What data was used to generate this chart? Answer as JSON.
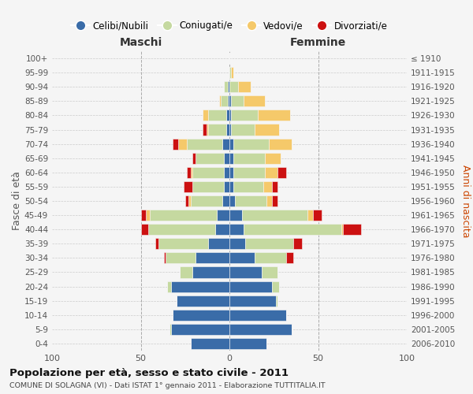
{
  "age_groups": [
    "0-4",
    "5-9",
    "10-14",
    "15-19",
    "20-24",
    "25-29",
    "30-34",
    "35-39",
    "40-44",
    "45-49",
    "50-54",
    "55-59",
    "60-64",
    "65-69",
    "70-74",
    "75-79",
    "80-84",
    "85-89",
    "90-94",
    "95-99",
    "100+"
  ],
  "birth_years": [
    "2006-2010",
    "2001-2005",
    "1996-2000",
    "1991-1995",
    "1986-1990",
    "1981-1985",
    "1976-1980",
    "1971-1975",
    "1966-1970",
    "1961-1965",
    "1956-1960",
    "1951-1955",
    "1946-1950",
    "1941-1945",
    "1936-1940",
    "1931-1935",
    "1926-1930",
    "1921-1925",
    "1916-1920",
    "1911-1915",
    "≤ 1910"
  ],
  "colors": {
    "celibi": "#3a6ca8",
    "coniugati": "#c5d9a0",
    "vedovi": "#f5c96a",
    "divorziati": "#cc1111"
  },
  "maschi": {
    "celibi": [
      22,
      33,
      32,
      30,
      33,
      21,
      19,
      12,
      8,
      7,
      4,
      3,
      3,
      3,
      4,
      2,
      2,
      1,
      1,
      0,
      0
    ],
    "coniugati": [
      0,
      1,
      0,
      0,
      2,
      7,
      17,
      28,
      38,
      38,
      18,
      18,
      18,
      16,
      20,
      10,
      10,
      4,
      2,
      0,
      0
    ],
    "vedovi": [
      0,
      0,
      0,
      0,
      0,
      0,
      0,
      0,
      0,
      2,
      1,
      0,
      1,
      0,
      5,
      1,
      3,
      1,
      0,
      0,
      0
    ],
    "divorziati": [
      0,
      0,
      0,
      0,
      0,
      0,
      1,
      2,
      4,
      3,
      2,
      5,
      2,
      2,
      3,
      2,
      0,
      0,
      0,
      0,
      0
    ]
  },
  "femmine": {
    "celibi": [
      21,
      35,
      32,
      26,
      24,
      18,
      14,
      9,
      8,
      7,
      3,
      2,
      2,
      2,
      2,
      1,
      1,
      1,
      0,
      0,
      0
    ],
    "coniugati": [
      0,
      0,
      0,
      1,
      4,
      9,
      18,
      27,
      55,
      37,
      18,
      17,
      18,
      18,
      20,
      13,
      15,
      7,
      5,
      1,
      0
    ],
    "vedovi": [
      0,
      0,
      0,
      0,
      0,
      0,
      0,
      0,
      1,
      3,
      3,
      5,
      7,
      9,
      13,
      14,
      18,
      12,
      7,
      1,
      0
    ],
    "divorziati": [
      0,
      0,
      0,
      0,
      0,
      0,
      4,
      5,
      10,
      5,
      3,
      3,
      5,
      0,
      0,
      0,
      0,
      0,
      0,
      0,
      0
    ]
  },
  "title": "Popolazione per età, sesso e stato civile - 2011",
  "subtitle": "COMUNE DI SOLAGNA (VI) - Dati ISTAT 1° gennaio 2011 - Elaborazione TUTTITALIA.IT",
  "xlabel_left": "Maschi",
  "xlabel_right": "Femmine",
  "ylabel_left": "Fasce di età",
  "ylabel_right": "Anni di nascita",
  "xlim": 100,
  "background_color": "#f5f5f5",
  "legend_labels": [
    "Celibi/Nubili",
    "Coniugati/e",
    "Vedovi/e",
    "Divorziati/e"
  ]
}
